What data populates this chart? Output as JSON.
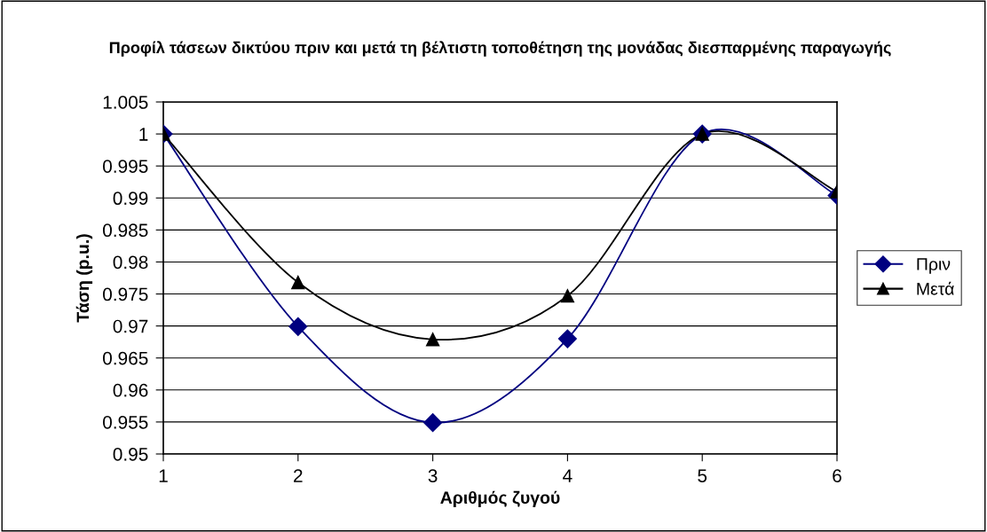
{
  "chart_data": {
    "type": "line",
    "title": "Προφίλ τάσεων δικτύου πριν και μετά τη βέλτιστη τοποθέτηση της μονάδας διεσπαρμένης παραγωγής",
    "xlabel": "Αριθμός ζυγού",
    "ylabel": "Τάση (p.u.)",
    "categories": [
      "1",
      "2",
      "3",
      "4",
      "5",
      "6"
    ],
    "series": [
      {
        "name": "Πριν",
        "color": "#000080",
        "marker": "diamond",
        "values": [
          1.0,
          0.9699,
          0.9549,
          0.968,
          1.0,
          0.9904
        ]
      },
      {
        "name": "Μετά",
        "color": "#000000",
        "marker": "triangle",
        "values": [
          1.0,
          0.9768,
          0.9679,
          0.9747,
          1.0,
          0.991
        ]
      }
    ],
    "ylim": [
      0.95,
      1.005
    ],
    "yticks": [
      {
        "value": 0.95,
        "label": "0.95"
      },
      {
        "value": 0.955,
        "label": "0.955"
      },
      {
        "value": 0.96,
        "label": "0.96"
      },
      {
        "value": 0.965,
        "label": "0.965"
      },
      {
        "value": 0.97,
        "label": "0.97"
      },
      {
        "value": 0.975,
        "label": "0.975"
      },
      {
        "value": 0.98,
        "label": "0.98"
      },
      {
        "value": 0.985,
        "label": "0.985"
      },
      {
        "value": 0.99,
        "label": "0.99"
      },
      {
        "value": 0.995,
        "label": "0.995"
      },
      {
        "value": 1,
        "label": "1"
      },
      {
        "value": 1.005,
        "label": "1.005"
      }
    ],
    "grid": "y",
    "legend": "right",
    "line_style": "solid"
  }
}
